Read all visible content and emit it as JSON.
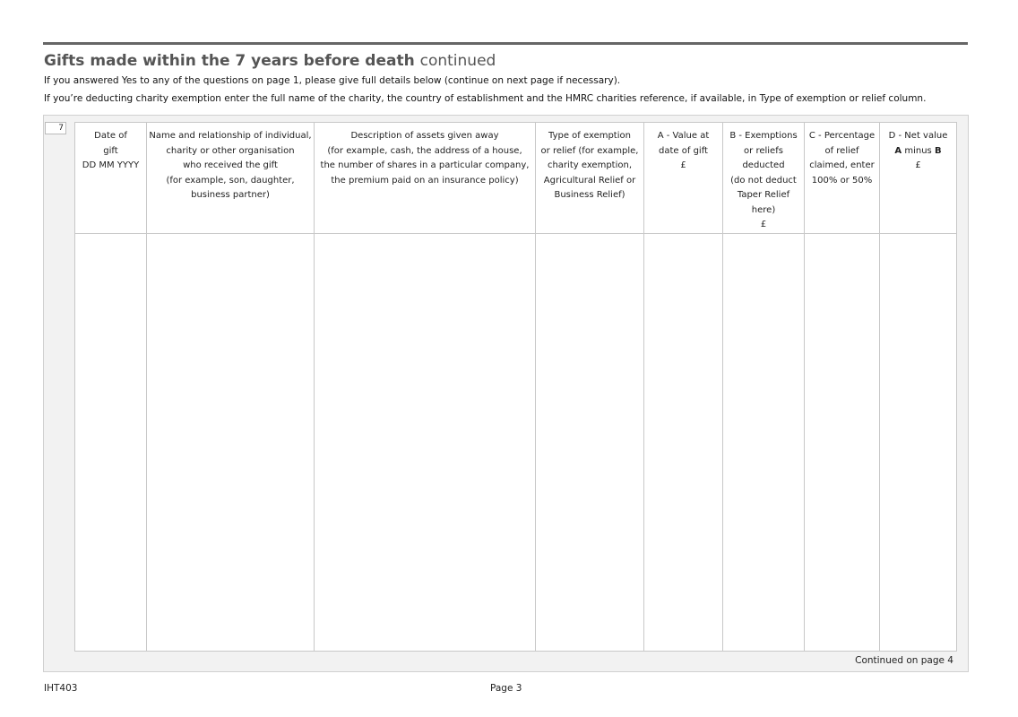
{
  "title": "Gifts made within the 7 years before death",
  "title_suffix": "continued",
  "intro1": "If you answered Yes to any of the questions on page 1, please give full details below (continue on next page if necessary).",
  "intro2": "If you’re deducting charity exemption enter the full name of the charity, the country of establishment and the HMRC charities reference, if available, in Type of exemption or relief column.",
  "question_number": "7",
  "columns": [
    "Date of\ngift\nDD MM YYYY",
    "Name and relationship of individual,\ncharity or other organisation\nwho received the gift\n(for example, son, daughter,\nbusiness partner)",
    "Description of assets given away\n(for example, cash, the address of a house,\nthe number of shares in a particular company,\nthe premium paid on an insurance policy)",
    "Type of exemption\nor relief (for example,\ncharity exemption,\nAgricultural Relief or\nBusiness Relief)",
    "A - Value at\ndate of gift\n£",
    "B - Exemptions\nor reliefs\ndeducted\n(do not deduct\nTaper Relief\nhere)\n£",
    "C - Percentage\nof relief\nclaimed, enter\n100% or 50%"
  ],
  "col_d": {
    "line1": "D - Net value",
    "a": "A",
    "minus": " minus ",
    "b": "B",
    "unit": "£"
  },
  "continued": "Continued on page 4",
  "footer_form": "IHT403",
  "footer_page": "Page 3"
}
